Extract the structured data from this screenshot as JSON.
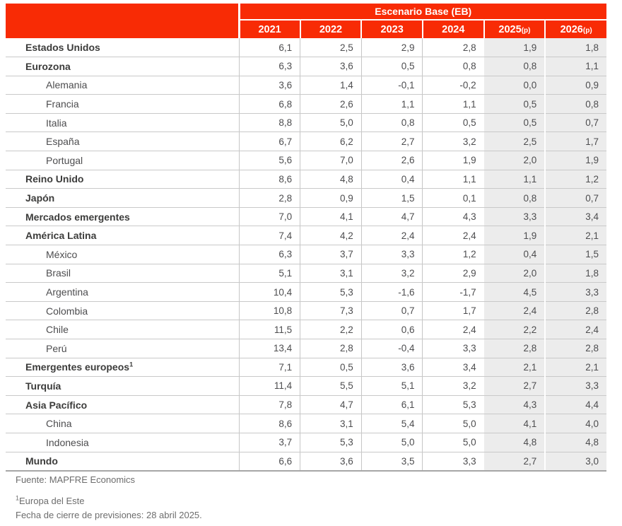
{
  "colors": {
    "accent": "#F82B05",
    "forecast_bg": "#ECECEC",
    "row_line": "#C9C9C9",
    "col_line": "#C6C6C6",
    "label_text": "#3C3C3B",
    "value_text": "#4D4D4F",
    "footer_text": "#6D6D6D",
    "table_bottom_line": "#A6A6A6"
  },
  "footer": {
    "source": "Fuente: MAPFRE Economics",
    "footnote_sup": "1",
    "footnote": "Europa del Este",
    "closing_date": "Fecha de cierre de previsiones: 28 abril 2025."
  },
  "chart_data": {
    "type": "table",
    "title": "Escenario Base (EB)",
    "columns": [
      "2021",
      "2022",
      "2023",
      "2024",
      "2025(p)",
      "2026(p)"
    ],
    "decimal_separator": ",",
    "rows": [
      {
        "name": "Estados Unidos",
        "bold": true,
        "indent": false,
        "sup": "",
        "values": [
          6.1,
          2.5,
          2.9,
          2.8,
          1.9,
          1.8
        ]
      },
      {
        "name": "Eurozona",
        "bold": true,
        "indent": false,
        "sup": "",
        "values": [
          6.3,
          3.6,
          0.5,
          0.8,
          0.8,
          1.1
        ]
      },
      {
        "name": "Alemania",
        "bold": false,
        "indent": true,
        "sup": "",
        "values": [
          3.6,
          1.4,
          -0.1,
          -0.2,
          0.0,
          0.9
        ]
      },
      {
        "name": "Francia",
        "bold": false,
        "indent": true,
        "sup": "",
        "values": [
          6.8,
          2.6,
          1.1,
          1.1,
          0.5,
          0.8
        ]
      },
      {
        "name": "Italia",
        "bold": false,
        "indent": true,
        "sup": "",
        "values": [
          8.8,
          5.0,
          0.8,
          0.5,
          0.5,
          0.7
        ]
      },
      {
        "name": "España",
        "bold": false,
        "indent": true,
        "sup": "",
        "values": [
          6.7,
          6.2,
          2.7,
          3.2,
          2.5,
          1.7
        ]
      },
      {
        "name": "Portugal",
        "bold": false,
        "indent": true,
        "sup": "",
        "values": [
          5.6,
          7.0,
          2.6,
          1.9,
          2.0,
          1.9
        ]
      },
      {
        "name": "Reino Unido",
        "bold": true,
        "indent": false,
        "sup": "",
        "values": [
          8.6,
          4.8,
          0.4,
          1.1,
          1.1,
          1.2
        ]
      },
      {
        "name": "Japón",
        "bold": true,
        "indent": false,
        "sup": "",
        "values": [
          2.8,
          0.9,
          1.5,
          0.1,
          0.8,
          0.7
        ]
      },
      {
        "name": "Mercados emergentes",
        "bold": true,
        "indent": false,
        "sup": "",
        "values": [
          7.0,
          4.1,
          4.7,
          4.3,
          3.3,
          3.4
        ]
      },
      {
        "name": "América Latina",
        "bold": true,
        "indent": false,
        "sup": "",
        "values": [
          7.4,
          4.2,
          2.4,
          2.4,
          1.9,
          2.1
        ]
      },
      {
        "name": "México",
        "bold": false,
        "indent": true,
        "sup": "",
        "values": [
          6.3,
          3.7,
          3.3,
          1.2,
          0.4,
          1.5
        ]
      },
      {
        "name": "Brasil",
        "bold": false,
        "indent": true,
        "sup": "",
        "values": [
          5.1,
          3.1,
          3.2,
          2.9,
          2.0,
          1.8
        ]
      },
      {
        "name": "Argentina",
        "bold": false,
        "indent": true,
        "sup": "",
        "values": [
          10.4,
          5.3,
          -1.6,
          -1.7,
          4.5,
          3.3
        ]
      },
      {
        "name": "Colombia",
        "bold": false,
        "indent": true,
        "sup": "",
        "values": [
          10.8,
          7.3,
          0.7,
          1.7,
          2.4,
          2.8
        ]
      },
      {
        "name": "Chile",
        "bold": false,
        "indent": true,
        "sup": "",
        "values": [
          11.5,
          2.2,
          0.6,
          2.4,
          2.2,
          2.4
        ]
      },
      {
        "name": "Perú",
        "bold": false,
        "indent": true,
        "sup": "",
        "values": [
          13.4,
          2.8,
          -0.4,
          3.3,
          2.8,
          2.8
        ]
      },
      {
        "name": "Emergentes europeos",
        "bold": true,
        "indent": false,
        "sup": "1",
        "values": [
          7.1,
          0.5,
          3.6,
          3.4,
          2.1,
          2.1
        ]
      },
      {
        "name": "Turquía",
        "bold": true,
        "indent": false,
        "sup": "",
        "values": [
          11.4,
          5.5,
          5.1,
          3.2,
          2.7,
          3.3
        ]
      },
      {
        "name": "Asia Pacífico",
        "bold": true,
        "indent": false,
        "sup": "",
        "values": [
          7.8,
          4.7,
          6.1,
          5.3,
          4.3,
          4.4
        ]
      },
      {
        "name": "China",
        "bold": false,
        "indent": true,
        "sup": "",
        "values": [
          8.6,
          3.1,
          5.4,
          5.0,
          4.1,
          4.0
        ]
      },
      {
        "name": "Indonesia",
        "bold": false,
        "indent": true,
        "sup": "",
        "values": [
          3.7,
          5.3,
          5.0,
          5.0,
          4.8,
          4.8
        ]
      },
      {
        "name": "Mundo",
        "bold": true,
        "indent": false,
        "sup": "",
        "values": [
          6.6,
          3.6,
          3.5,
          3.3,
          2.7,
          3.0
        ]
      }
    ],
    "notes": [
      "Fuente: MAPFRE Economics",
      "1 Europa del Este",
      "Fecha de cierre de previsiones: 28 abril 2025."
    ],
    "forecast_columns": [
      "2025(p)",
      "2026(p)"
    ]
  }
}
